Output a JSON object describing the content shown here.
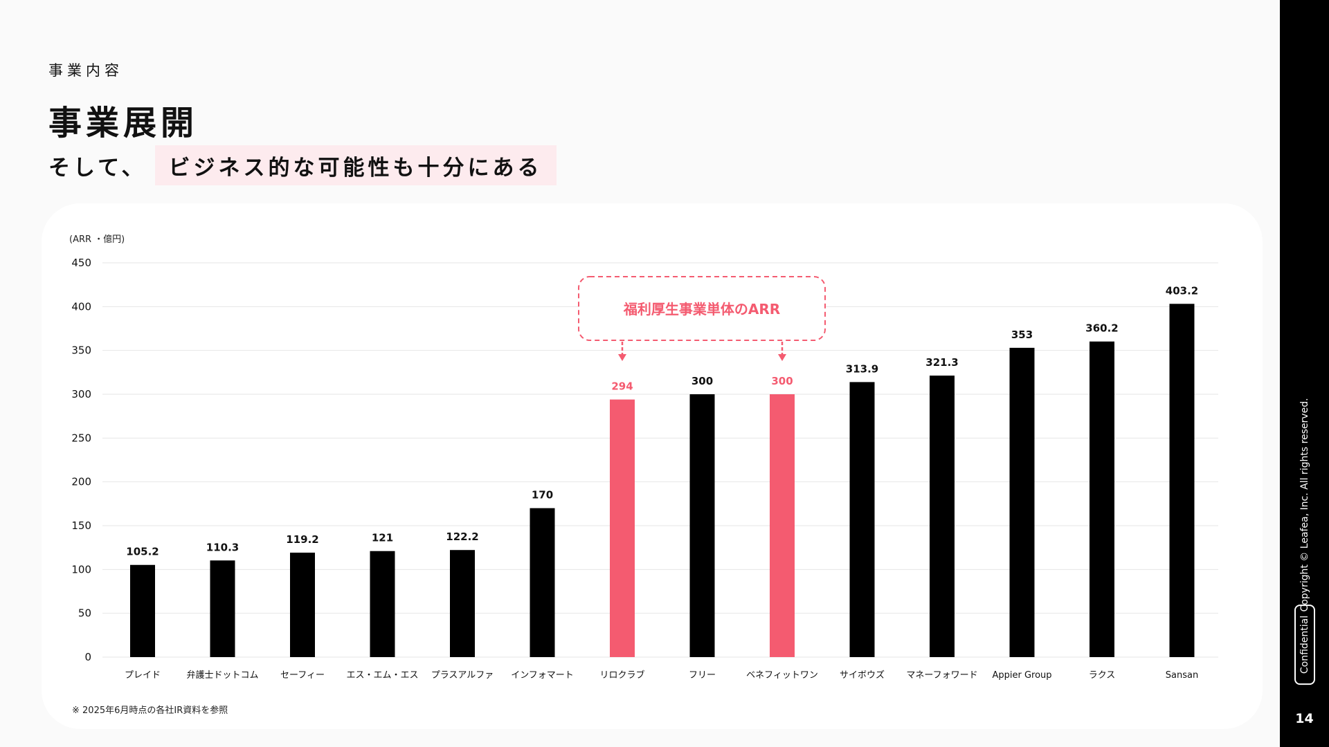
{
  "header": {
    "section_label": "事業内容",
    "title": "事業展開",
    "subtitle_lead": "そして、",
    "subtitle_highlight": "ビジネス的な可能性も十分にある"
  },
  "colors": {
    "highlight": "#f45b70",
    "bar": "#000000",
    "highlight_bg": "#fdebee"
  },
  "chart_data": {
    "type": "bar",
    "unit_label": "(ARR ・億円)",
    "categories": [
      "プレイド",
      "弁護士ドットコム",
      "セーフィー",
      "エス・エム・エス",
      "プラスアルファ",
      "インフォマート",
      "リロクラブ",
      "フリー",
      "ベネフィットワン",
      "サイボウズ",
      "マネーフォワード",
      "Appier Group",
      "ラクス",
      "Sansan"
    ],
    "values": [
      105.2,
      110.3,
      119.2,
      121,
      122.2,
      170,
      294,
      300,
      300,
      313.9,
      321.3,
      353,
      360.2,
      403.2
    ],
    "value_labels": [
      "105.2",
      "110.3",
      "119.2",
      "121",
      "122.2",
      "170",
      "294",
      "300",
      "300",
      "313.9",
      "321.3",
      "353",
      "360.2",
      "403.2"
    ],
    "highlighted": [
      false,
      false,
      false,
      false,
      false,
      false,
      true,
      false,
      true,
      false,
      false,
      false,
      false,
      false
    ],
    "ylim": [
      0,
      450
    ],
    "yticks": [
      0,
      50,
      100,
      150,
      200,
      250,
      300,
      350,
      400,
      450
    ],
    "grid": true,
    "annotation": "福利厚生事業単体のARR"
  },
  "footnote": "※ 2025年6月時点の各社IR資料を参照",
  "sidebar": {
    "copyright": "Copyright © Leafea, Inc. All rights reserved.",
    "confidential": "Confidential",
    "page_number": "14"
  }
}
